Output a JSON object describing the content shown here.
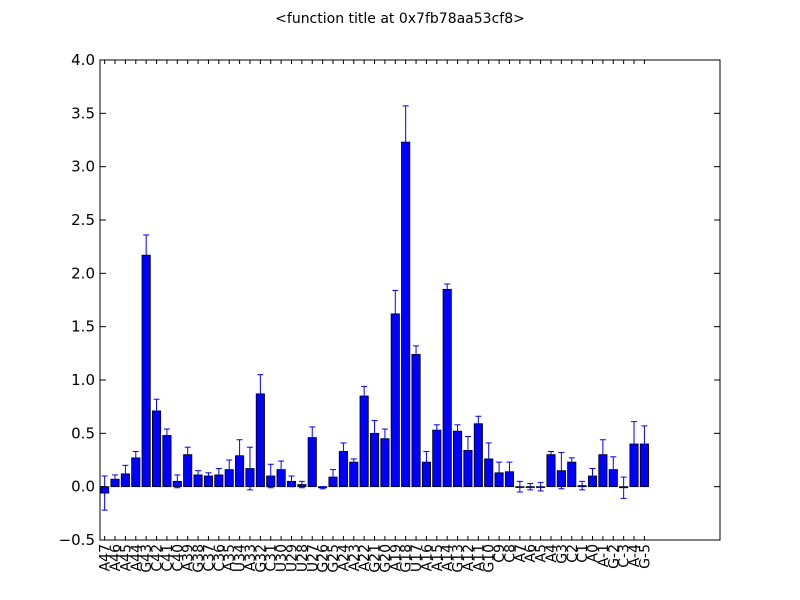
{
  "chart_data": {
    "type": "bar",
    "title": "<function title at 0x7fb78aa53cf8>",
    "xlabel": "",
    "ylabel": "",
    "ylim": [
      -0.5,
      4.0
    ],
    "yticks": [
      "−0.5",
      "0.0",
      "0.5",
      "1.0",
      "1.5",
      "2.0",
      "2.5",
      "3.0",
      "3.5",
      "4.0"
    ],
    "ytick_values": [
      -0.5,
      0.0,
      0.5,
      1.0,
      1.5,
      2.0,
      2.5,
      3.0,
      3.5,
      4.0
    ],
    "grid": false,
    "bar_color": "#0000ff",
    "error_color": "#0000ff",
    "categories": [
      "A47",
      "A46",
      "A45",
      "A44",
      "G43",
      "C42",
      "C41",
      "C40",
      "A39",
      "G38",
      "C37",
      "C36",
      "A35",
      "U34",
      "A33",
      "G32",
      "C31",
      "U30",
      "U29",
      "U28",
      "U27",
      "G26",
      "G25",
      "A24",
      "A23",
      "A22",
      "G21",
      "G20",
      "A19",
      "G18",
      "U17",
      "A16",
      "A15",
      "A14",
      "G13",
      "A12",
      "A11",
      "G10",
      "C9",
      "C8",
      "A7",
      "A6",
      "A5",
      "A4",
      "G3",
      "C2",
      "C1",
      "A0",
      "A-1",
      "G-2",
      "C-3",
      "A-4",
      "G-5"
    ],
    "values": [
      -0.06,
      0.07,
      0.12,
      0.27,
      2.17,
      0.71,
      0.48,
      0.05,
      0.3,
      0.11,
      0.1,
      0.11,
      0.16,
      0.29,
      0.17,
      0.87,
      0.1,
      0.16,
      0.05,
      0.02,
      0.46,
      -0.01,
      0.09,
      0.33,
      0.23,
      0.85,
      0.5,
      0.45,
      1.62,
      3.23,
      1.24,
      0.23,
      0.53,
      1.85,
      0.52,
      0.34,
      0.59,
      0.26,
      0.13,
      0.14,
      0.0,
      0.0,
      0.0,
      0.3,
      0.15,
      0.23,
      0.01,
      0.1,
      0.3,
      0.16,
      -0.01,
      0.4,
      0.4
    ],
    "errors": [
      0.16,
      0.04,
      0.08,
      0.06,
      0.19,
      0.11,
      0.06,
      0.06,
      0.07,
      0.04,
      0.03,
      0.06,
      0.09,
      0.15,
      0.2,
      0.18,
      0.11,
      0.08,
      0.05,
      0.03,
      0.1,
      0.01,
      0.07,
      0.08,
      0.03,
      0.09,
      0.12,
      0.09,
      0.22,
      0.34,
      0.08,
      0.1,
      0.05,
      0.05,
      0.06,
      0.13,
      0.07,
      0.15,
      0.1,
      0.09,
      0.05,
      0.03,
      0.04,
      0.03,
      0.17,
      0.04,
      0.04,
      0.07,
      0.14,
      0.12,
      0.1,
      0.21,
      0.17
    ]
  }
}
